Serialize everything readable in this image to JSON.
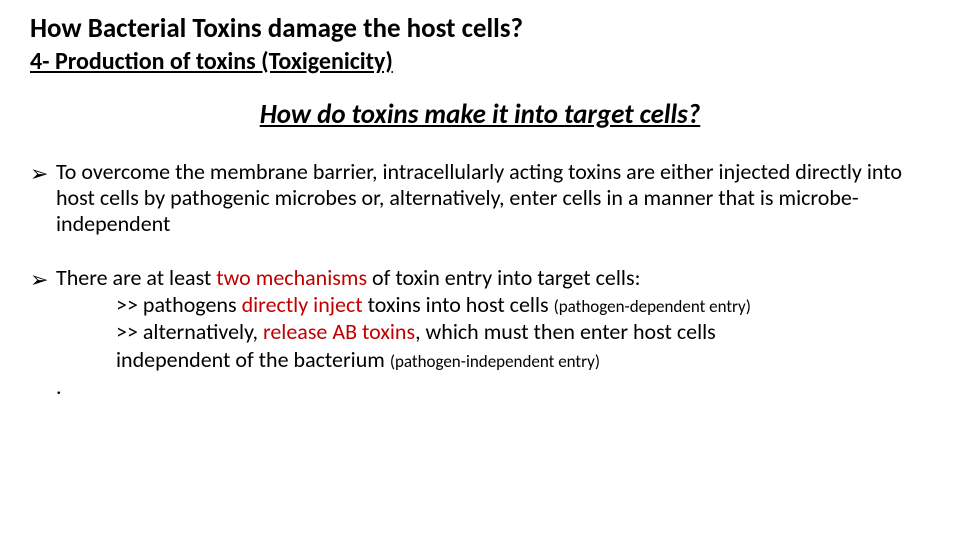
{
  "title": {
    "text": "How Bacterial Toxins damage the host cells?",
    "fontsize": 27,
    "weight": 700,
    "color": "#000000"
  },
  "subtitle": {
    "text": "4- Production of toxins (Toxigenicity)",
    "fontsize": 24,
    "weight": 700,
    "underline": true,
    "color": "#000000"
  },
  "section_heading": {
    "text": "How do toxins make it into target cells?",
    "fontsize": 27,
    "italic": true,
    "underline": true,
    "weight": 700,
    "color": "#000000"
  },
  "bullets": [
    {
      "marker": "➢",
      "fontsize": 22,
      "segments": [
        {
          "text": "To overcome the membrane barrier, intracellularly acting toxins are either injected directly into host cells by pathogenic microbes or, alternatively, enter cells in a manner that is microbe-independent"
        }
      ],
      "sub_lines": []
    },
    {
      "marker": "➢",
      "fontsize": 22,
      "segments": [
        {
          "text": "There are at least "
        },
        {
          "text": "two mechanisms",
          "highlight": true
        },
        {
          "text": " of toxin entry into target cells:"
        }
      ],
      "sub_lines": [
        {
          "segments": [
            {
              "text": ">> pathogens "
            },
            {
              "text": "directly inject",
              "highlight": true
            },
            {
              "text": " toxins into host cells "
            },
            {
              "text": "(pathogen-dependent entry)",
              "small": true
            }
          ]
        },
        {
          "segments": [
            {
              "text": ">> alternatively, "
            },
            {
              "text": "release AB toxins",
              "highlight": true
            },
            {
              "text": ", which must then enter host cells"
            }
          ]
        },
        {
          "segments": [
            {
              "text": "independent of the bacterium "
            },
            {
              "text": "(pathogen-independent entry)",
              "small": true
            }
          ]
        },
        {
          "segments": [
            {
              "text": "."
            }
          ],
          "outdent": true
        }
      ]
    }
  ],
  "colors": {
    "text": "#000000",
    "highlight": "#c00000",
    "background": "#ffffff"
  }
}
